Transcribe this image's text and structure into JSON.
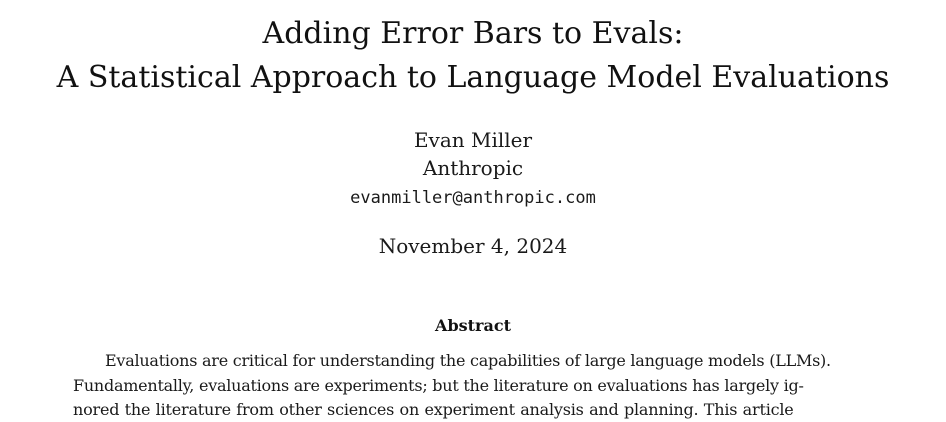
{
  "paper": {
    "title_line_1": "Adding Error Bars to Evals:",
    "title_line_2": "A Statistical Approach to Language Model Evaluations",
    "author": {
      "name": "Evan Miller",
      "affiliation": "Anthropic",
      "email": "evanmiller@anthropic.com"
    },
    "date": "November 4, 2024",
    "abstract": {
      "heading": "Abstract",
      "lines": [
        "Evaluations are critical for understanding the capabilities of large language models (LLMs).",
        "Fundamentally, evaluations are experiments; but the literature on evaluations has largely ig-",
        "nored the literature from other sciences on experiment analysis and planning.  This article"
      ]
    }
  }
}
